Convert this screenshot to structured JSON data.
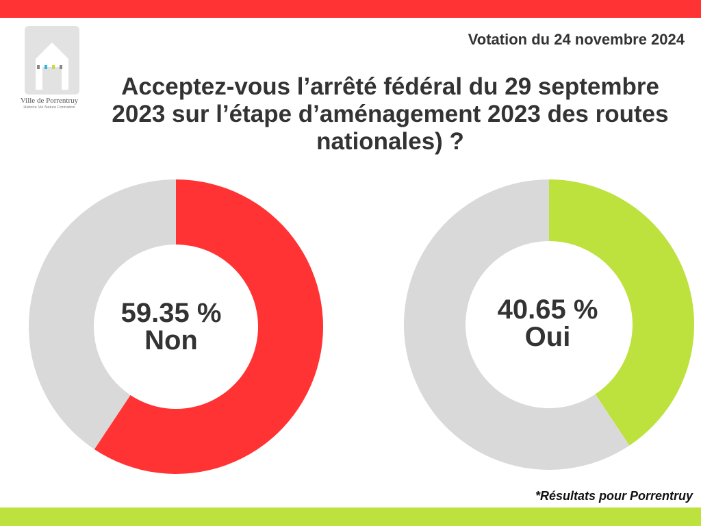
{
  "header": {
    "vote_date": "Votation du 24 novembre 2024",
    "question": "Acceptez-vous l’arrêté fédéral du 29 septembre 2023 sur l’étape d’aménagement 2023 des routes nationales) ?"
  },
  "logo": {
    "name": "Ville de Porrentruy",
    "tagline": "Histoire Vie Nature Formation",
    "icon": "house-icon"
  },
  "footer": {
    "note": "*Résultats pour Porrentruy"
  },
  "colors": {
    "top_bar": "#ff3333",
    "bottom_bar": "#bde13d",
    "non": "#ff3333",
    "oui": "#bde13d",
    "remainder": "#d9d9d9"
  },
  "chart_data": [
    {
      "type": "pie",
      "categories": [
        "Non",
        ""
      ],
      "values": [
        59.35,
        40.65
      ],
      "value_label": "59.35 %",
      "center_label": "Non"
    },
    {
      "type": "pie",
      "categories": [
        "Oui",
        ""
      ],
      "values": [
        40.65,
        59.35
      ],
      "value_label": "40.65 %",
      "center_label": "Oui"
    }
  ]
}
